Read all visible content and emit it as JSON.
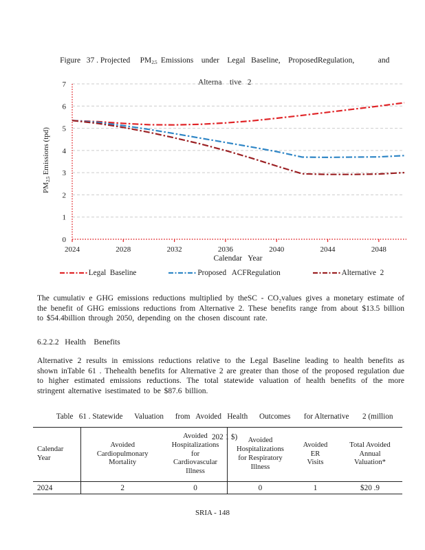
{
  "document": {
    "figure_caption": {
      "pre": "Figure   37 . Projected     PM",
      "sub": "2.5",
      "post": "  Emissions    under    Legal   Baseline,    ProposedRegulation,            and",
      "line2": "Alterna    tive   2"
    },
    "paragraph_ghg": "The cumulativ e GHG emissions reductions multiplied by theSC - CO₂values gives a monetary estimate of the benefit of GHG emissions reductions from Alternative 2. These benefits range from about $13.5 billion to $54.4billion through 2050, depending on the chosen discount rate.",
    "section_heading": "6.2.2.2   Health    Benefits",
    "paragraph_health": "Alternative 2 results in emissions reductions relative to the Legal Baseline leading to health benefits as shown inTable 61 . Thehealth benefits for Alternative 2 are greater than those of the proposed regulation due to higher estimated emissions reductions.  The total statewide valuation of health benefits of the more stringent alternative isestimated to be $87.6 billion.",
    "table_caption": {
      "line1": "Table   61 . Statewide      Valuation      from   Avoided   Health      Outcomes       for Alternative       2 (million",
      "line2": "202 1 $)"
    },
    "footer": "SRIA - 148"
  },
  "chart_data": {
    "type": "line",
    "title": "Figure 37. Projected PM2.5 Emissions under Legal Baseline, Proposed Regulation, and Alternative 2",
    "xlabel": "Calendar   Year",
    "ylabel": "PM2.5 Emissions (tpd)",
    "ylabel_parts": {
      "prefix": "PM",
      "sub": "2.5",
      "suffix": " Emissions (tpd)"
    },
    "xlim": [
      2024,
      2050
    ],
    "ylim": [
      0,
      7
    ],
    "x_ticks": [
      2024,
      2028,
      2032,
      2036,
      2040,
      2044,
      2048
    ],
    "y_ticks": [
      0,
      1,
      2,
      3,
      4,
      5,
      6,
      7
    ],
    "grid": "horizontal dashed gray",
    "legend_position": "bottom",
    "axis_color": "#e02528",
    "x": [
      2024,
      2026,
      2028,
      2030,
      2032,
      2034,
      2036,
      2038,
      2040,
      2042,
      2044,
      2046,
      2048,
      2050
    ],
    "series": [
      {
        "name": "Legal Baseline",
        "label": "Legal  Baseline",
        "color": "#e02528",
        "values": [
          5.35,
          5.3,
          5.22,
          5.16,
          5.15,
          5.18,
          5.24,
          5.33,
          5.45,
          5.58,
          5.72,
          5.86,
          6.0,
          6.15
        ]
      },
      {
        "name": "Proposed ACF Regulation",
        "label": "Proposed   ACFRegulation",
        "color": "#2f86c6",
        "values": [
          5.35,
          5.27,
          5.12,
          4.95,
          4.76,
          4.56,
          4.36,
          4.16,
          3.95,
          3.7,
          3.69,
          3.7,
          3.71,
          3.77
        ]
      },
      {
        "name": "Alternative 2",
        "label": "Alternative  2",
        "color": "#9b2023",
        "values": [
          5.35,
          5.22,
          5.04,
          4.82,
          4.57,
          4.3,
          4.0,
          3.66,
          3.3,
          2.95,
          2.92,
          2.92,
          2.94,
          3.0
        ]
      }
    ]
  },
  "table": {
    "headers": [
      "Calendar\nYear",
      "Avoided\nCardiopulmonary\nMortality",
      "Avoided\nHospitalizations\nfor\nCardiovascular\nIllness",
      "Avoided\nHospitalizations\nfor  Respiratory\nIllness",
      "Avoided\nER\nVisits",
      "Total  Avoided\nAnnual\nValuation*"
    ],
    "rows": [
      [
        "2024",
        "2",
        "0",
        "0",
        "1",
        "$20 .9"
      ]
    ]
  }
}
